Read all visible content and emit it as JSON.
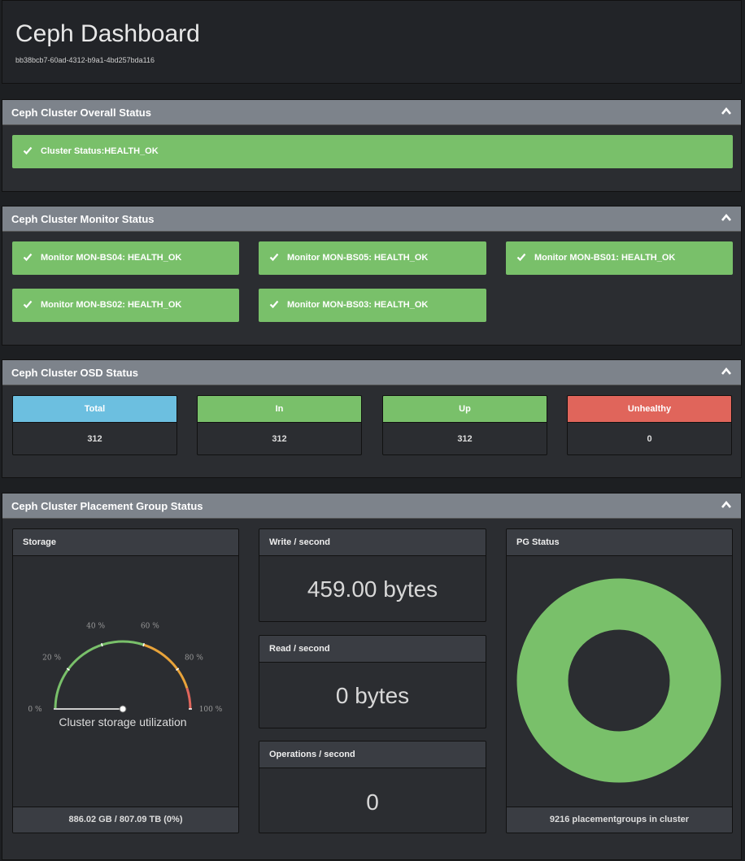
{
  "header": {
    "title": "Ceph Dashboard",
    "cluster_id": "bb38bcb7-60ad-4312-b9a1-4bd257bda116"
  },
  "overall": {
    "title": "Ceph Cluster Overall Status",
    "status": "Cluster Status:HEALTH_OK"
  },
  "monitors": {
    "title": "Ceph Cluster Monitor Status",
    "items": [
      "Monitor MON-BS04: HEALTH_OK",
      "Monitor MON-BS05: HEALTH_OK",
      "Monitor MON-BS01: HEALTH_OK",
      "Monitor MON-BS02: HEALTH_OK",
      "Monitor MON-BS03: HEALTH_OK"
    ]
  },
  "osd": {
    "title": "Ceph Cluster OSD Status",
    "boxes": [
      {
        "label": "Total",
        "value": "312",
        "color": "#6cbfe0"
      },
      {
        "label": "In",
        "value": "312",
        "color": "#79c06a"
      },
      {
        "label": "Up",
        "value": "312",
        "color": "#79c06a"
      },
      {
        "label": "Unhealthy",
        "value": "0",
        "color": "#e0655b"
      }
    ]
  },
  "pg": {
    "title": "Ceph Cluster Placement Group Status",
    "storage": {
      "title": "Storage",
      "gauge_label": "Cluster storage utilization",
      "ticks": [
        "0 %",
        "20 %",
        "40 %",
        "60 %",
        "80 %",
        "100 %"
      ],
      "utilization_percent": 0,
      "footer": "886.02 GB / 807.09 TB (0%)"
    },
    "write": {
      "title": "Write / second",
      "value": "459.00 bytes"
    },
    "read": {
      "title": "Read / second",
      "value": "0 bytes"
    },
    "ops": {
      "title": "Operations / second",
      "value": "0"
    },
    "pg_status": {
      "title": "PG Status",
      "footer": "9216 placementgroups in cluster"
    }
  },
  "colors": {
    "ok": "#79c06a",
    "info": "#6cbfe0",
    "danger": "#e0655b",
    "panel_header": "#7d838b"
  },
  "icons": {
    "check": "check-icon",
    "collapse": "chevron-up-icon"
  }
}
